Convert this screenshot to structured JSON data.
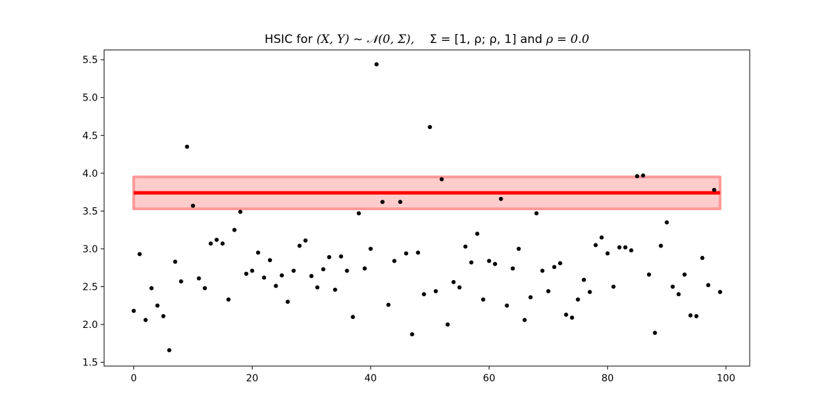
{
  "chart_data": {
    "type": "scatter",
    "title": {
      "prefix": "HSIC for ",
      "pair": "(X, Y)",
      "tilde": " ~ ",
      "dist": "𝒩(0, Σ),",
      "sigma": "Σ = [1, ρ; ρ, 1]",
      "and": "  and ",
      "rho": "ρ = 0.0"
    },
    "xlabel": "",
    "ylabel": "",
    "xlim": [
      -5,
      104
    ],
    "ylim": [
      1.45,
      5.63
    ],
    "xticks": [
      0,
      20,
      40,
      60,
      80,
      100
    ],
    "xtick_labels": [
      "0",
      "20",
      "40",
      "60",
      "80",
      "100"
    ],
    "yticks": [
      1.5,
      2.0,
      2.5,
      3.0,
      3.5,
      4.0,
      4.5,
      5.0,
      5.5
    ],
    "ytick_labels": [
      "1.5",
      "2.0",
      "2.5",
      "3.0",
      "3.5",
      "4.0",
      "4.5",
      "5.0",
      "5.5"
    ],
    "grid": false,
    "point_color": "#000000",
    "line_color": "#ff0000",
    "band_color": "#ff9999",
    "reference_line": {
      "y": 3.74,
      "x_start": 0,
      "x_end": 99
    },
    "band": {
      "y_low": 3.53,
      "y_high": 3.95,
      "x_start": 0,
      "x_end": 99
    },
    "x": [
      0,
      1,
      2,
      3,
      4,
      5,
      6,
      7,
      8,
      9,
      10,
      11,
      12,
      13,
      14,
      15,
      16,
      17,
      18,
      19,
      20,
      21,
      22,
      23,
      24,
      25,
      26,
      27,
      28,
      29,
      30,
      31,
      32,
      33,
      34,
      35,
      36,
      37,
      38,
      39,
      40,
      41,
      42,
      43,
      44,
      45,
      46,
      47,
      48,
      49,
      50,
      51,
      52,
      53,
      54,
      55,
      56,
      57,
      58,
      59,
      60,
      61,
      62,
      63,
      64,
      65,
      66,
      67,
      68,
      69,
      70,
      71,
      72,
      73,
      74,
      75,
      76,
      77,
      78,
      79,
      80,
      81,
      82,
      83,
      84,
      85,
      86,
      87,
      88,
      89,
      90,
      91,
      92,
      93,
      94,
      95,
      96,
      97,
      98,
      99
    ],
    "y": [
      2.18,
      2.93,
      2.06,
      2.48,
      2.25,
      2.11,
      1.66,
      2.83,
      2.57,
      4.35,
      3.57,
      2.61,
      2.48,
      3.07,
      3.12,
      3.07,
      2.33,
      3.25,
      3.49,
      2.67,
      2.71,
      2.95,
      2.62,
      2.85,
      2.51,
      2.65,
      2.3,
      2.71,
      3.04,
      3.11,
      2.64,
      2.49,
      2.73,
      2.89,
      2.46,
      2.9,
      2.71,
      2.1,
      3.47,
      2.74,
      3.0,
      5.44,
      3.62,
      2.26,
      2.84,
      3.62,
      2.94,
      1.87,
      2.95,
      2.4,
      4.61,
      2.44,
      3.92,
      2.0,
      2.56,
      2.49,
      3.03,
      2.82,
      3.2,
      2.33,
      2.84,
      2.8,
      3.66,
      2.25,
      2.74,
      3.0,
      2.06,
      2.36,
      3.47,
      2.71,
      2.44,
      2.76,
      2.81,
      2.13,
      2.09,
      2.33,
      2.59,
      2.43,
      3.05,
      3.15,
      2.94,
      2.5,
      3.02,
      3.02,
      2.98,
      3.96,
      3.97,
      2.66,
      1.89,
      3.04,
      3.35,
      2.5,
      2.4,
      2.66,
      2.12,
      2.11,
      2.88,
      2.52,
      3.78,
      2.43
    ]
  }
}
